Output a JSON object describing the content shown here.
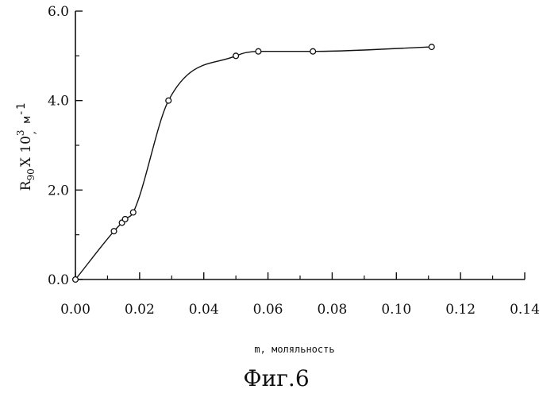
{
  "chart_data": {
    "type": "line",
    "x": [
      0.0,
      0.012,
      0.0145,
      0.0155,
      0.018,
      0.029,
      0.05,
      0.057,
      0.074,
      0.111
    ],
    "series": [
      {
        "values": [
          0.0,
          1.08,
          1.27,
          1.35,
          1.5,
          4.0,
          5.0,
          5.1,
          5.1,
          5.2
        ]
      }
    ],
    "xlim": [
      0.0,
      0.14
    ],
    "ylim": [
      0.0,
      6.0
    ],
    "x_ticks": [
      "0.00",
      "0.02",
      "0.04",
      "0.06",
      "0.08",
      "0.10",
      "0.12",
      "0.14"
    ],
    "y_ticks": [
      "0.0",
      "2.0",
      "4.0",
      "6.0"
    ],
    "xlabel": "m, моляльность",
    "ylabel": "R90 x 10 3 , м -1",
    "ylabel_parts": {
      "r": "R",
      "sub": "90",
      "times": "X 10",
      "sup": "3",
      "comma": ",",
      "unit": "м",
      "unit_exp": "-1"
    },
    "grid": false,
    "marker": "open-circle",
    "smooth": true
  },
  "caption": "Фиг.6"
}
